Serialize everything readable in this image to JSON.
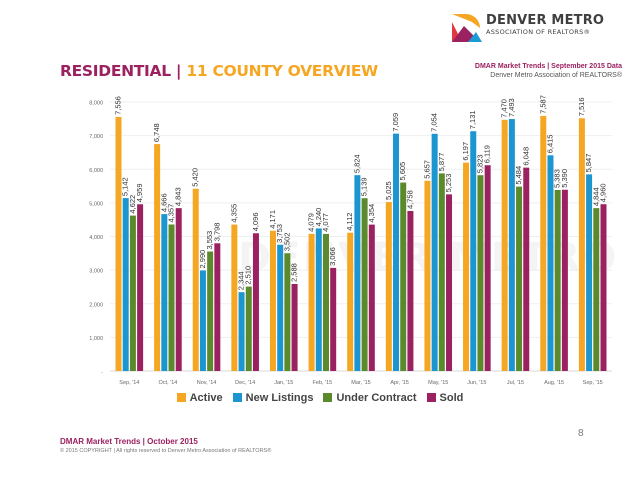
{
  "brand": {
    "name": "DENVER METRO",
    "subtitle": "ASSOCIATION OF REALTORS®",
    "colors": {
      "orange": "#f5a623",
      "magenta": "#9b2160",
      "red": "#e03a3e",
      "blue": "#1b9ad6"
    }
  },
  "header": {
    "report_line": "DMAR Market Trends | September 2015 Data",
    "org_line": "Denver Metro Association of REALTORS®"
  },
  "title": {
    "part1": "RESIDENTIAL |",
    "part2": "11 COUNTY OVERVIEW"
  },
  "watermark": "DENVER METRO",
  "chart_data": {
    "type": "bar",
    "title": "RESIDENTIAL | 11 COUNTY OVERVIEW",
    "xlabel": "",
    "ylabel": "",
    "ylim": [
      0,
      8000
    ],
    "yticks": [
      0,
      1000,
      2000,
      3000,
      4000,
      5000,
      6000,
      7000,
      8000
    ],
    "ytick_labels": [
      "-",
      "1,000",
      "2,000",
      "3,000",
      "4,000",
      "5,000",
      "6,000",
      "7,000",
      "8,000"
    ],
    "grid": true,
    "legend_position": "bottom",
    "categories": [
      "Sep, '14",
      "Oct, '14",
      "Nov, '14",
      "Dec, '14",
      "Jan, '15",
      "Feb, '15",
      "Mar, '15",
      "Apr, '15",
      "May, '15",
      "Jun, '15",
      "Jul, '15",
      "Aug, '15",
      "Sep, '15"
    ],
    "series": [
      {
        "name": "Active",
        "color": "#f5a623",
        "values": [
          7556,
          6748,
          5420,
          4355,
          4171,
          4079,
          4112,
          5025,
          5657,
          6197,
          7470,
          7587,
          7516
        ]
      },
      {
        "name": "New Listings",
        "color": "#1b96d1",
        "values": [
          5142,
          4666,
          2990,
          2344,
          3753,
          4240,
          5824,
          7059,
          7054,
          7131,
          7493,
          6415,
          5847
        ]
      },
      {
        "name": "Under Contract",
        "color": "#5b8a2d",
        "values": [
          4622,
          4357,
          3553,
          2510,
          3502,
          4077,
          5139,
          5605,
          5877,
          5823,
          5484,
          5383,
          4844
        ]
      },
      {
        "name": "Sold",
        "color": "#9b2160",
        "values": [
          4959,
          4843,
          3798,
          4096,
          2588,
          3066,
          4354,
          4758,
          5253,
          6119,
          6048,
          5390,
          4960
        ]
      }
    ]
  },
  "footer": {
    "page_number": "8",
    "report": "DMAR Market Trends | October 2015",
    "copyright": "© 2015 COPYRIGHT | All rights reserved to Denver Metro Association of REALTORS®"
  }
}
